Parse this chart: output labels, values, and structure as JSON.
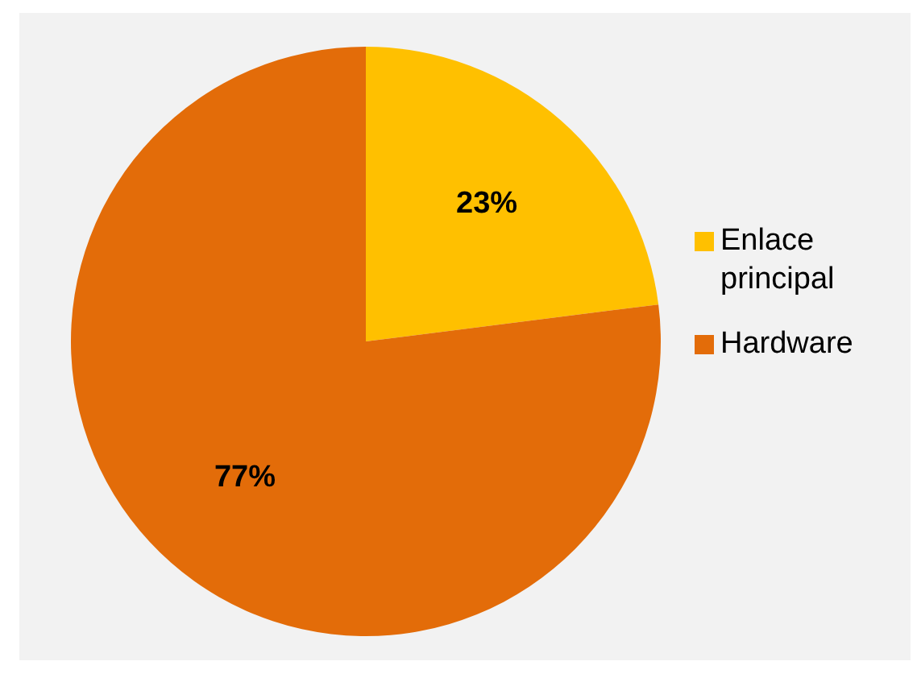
{
  "chart_data": {
    "type": "pie",
    "categories": [
      "Enlace principal",
      "Hardware"
    ],
    "values": [
      23,
      77
    ],
    "colors": [
      "#ffc000",
      "#e36c09"
    ],
    "value_labels": [
      "23%",
      "77%"
    ],
    "legend": "right"
  }
}
